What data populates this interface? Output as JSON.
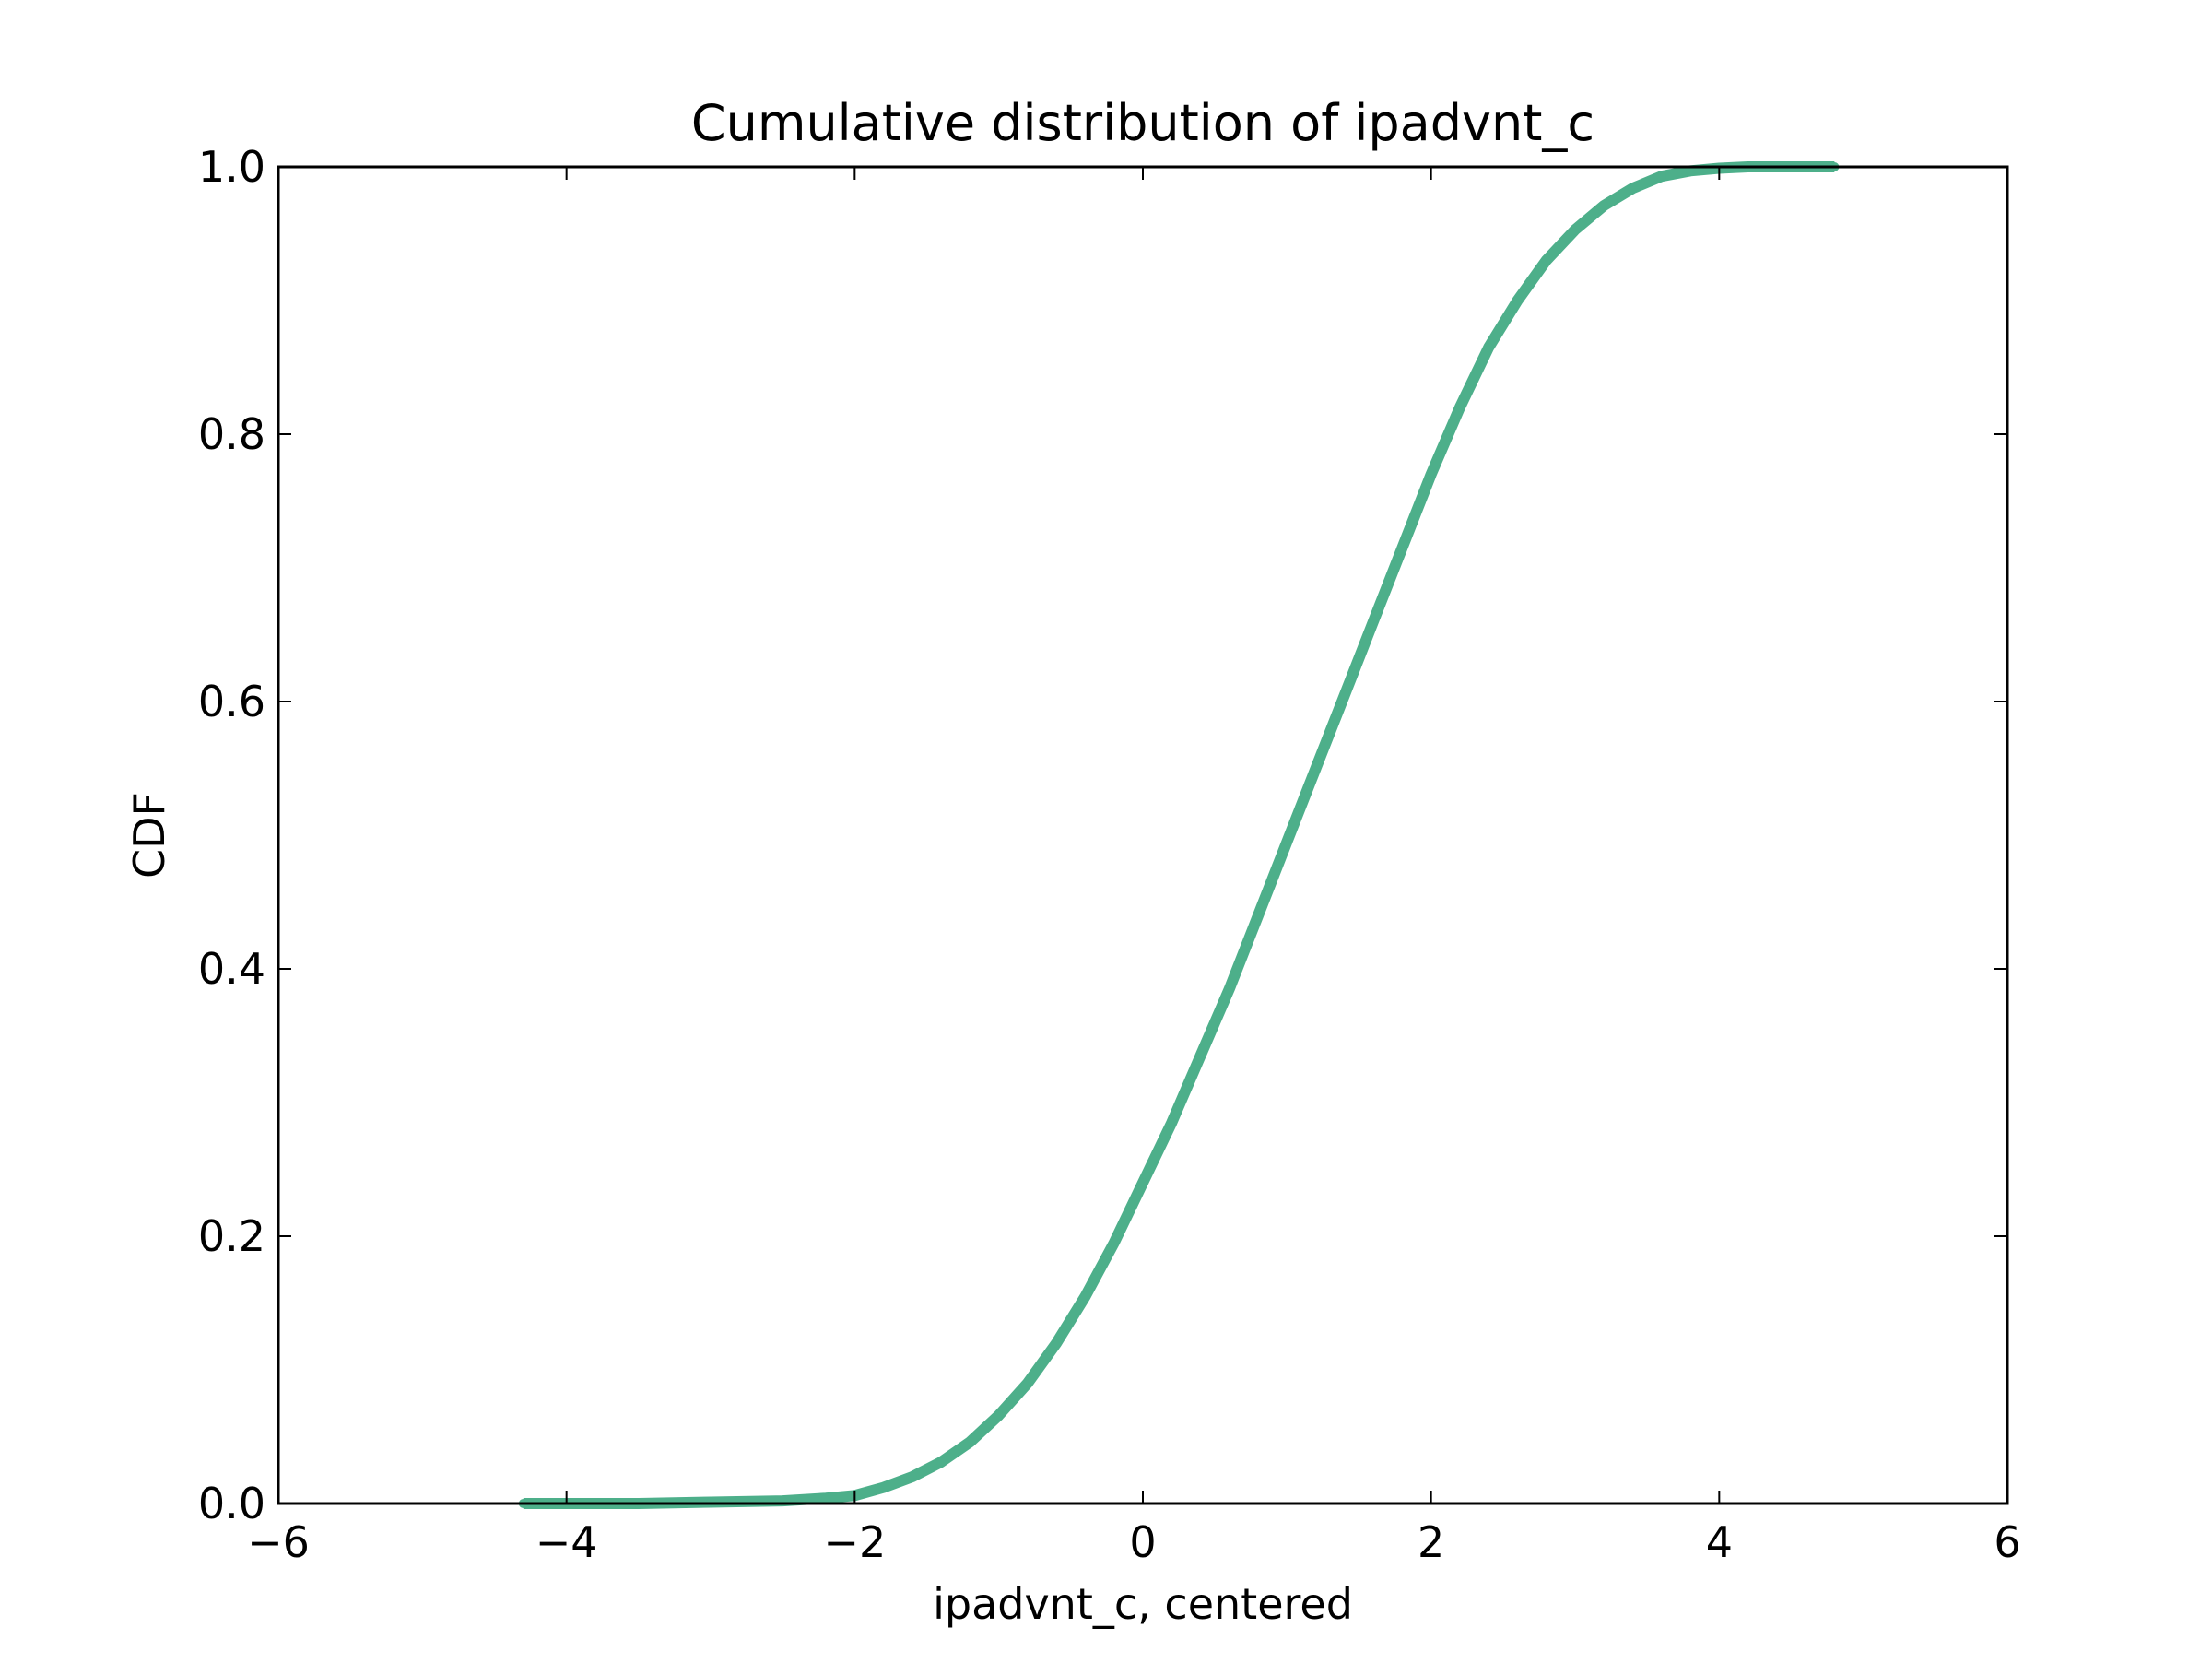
{
  "chart_data": {
    "type": "line",
    "title": "Cumulative distribution of ipadvnt_c",
    "xlabel": "ipadvnt_c, centered",
    "ylabel": "CDF",
    "xlim": [
      -6,
      6
    ],
    "ylim": [
      0.0,
      1.0
    ],
    "x_ticks": [
      "−6",
      "−4",
      "−2",
      "0",
      "2",
      "4",
      "6"
    ],
    "y_ticks": [
      "0.0",
      "0.2",
      "0.4",
      "0.6",
      "0.8",
      "1.0"
    ],
    "grid": false,
    "legend": "none",
    "series": [
      {
        "color": "#4daf8a",
        "x": [
          -4.3,
          -3.5,
          -3.0,
          -2.5,
          -2.2,
          -2.0,
          -1.8,
          -1.6,
          -1.4,
          -1.2,
          -1.0,
          -0.8,
          -0.6,
          -0.4,
          -0.2,
          0.0,
          0.2,
          0.4,
          0.6,
          0.8,
          1.0,
          1.2,
          1.4,
          1.6,
          1.8,
          2.0,
          2.2,
          2.4,
          2.6,
          2.8,
          3.0,
          3.2,
          3.4,
          3.6,
          3.8,
          4.0,
          4.2,
          4.5,
          4.8
        ],
        "y": [
          0.0,
          0.0,
          0.001,
          0.002,
          0.004,
          0.006,
          0.012,
          0.02,
          0.031,
          0.046,
          0.066,
          0.09,
          0.12,
          0.155,
          0.195,
          0.24,
          0.285,
          0.335,
          0.385,
          0.44,
          0.495,
          0.55,
          0.605,
          0.66,
          0.715,
          0.77,
          0.82,
          0.865,
          0.9,
          0.93,
          0.953,
          0.971,
          0.984,
          0.993,
          0.997,
          0.999,
          1.0,
          1.0,
          1.0
        ]
      }
    ]
  }
}
